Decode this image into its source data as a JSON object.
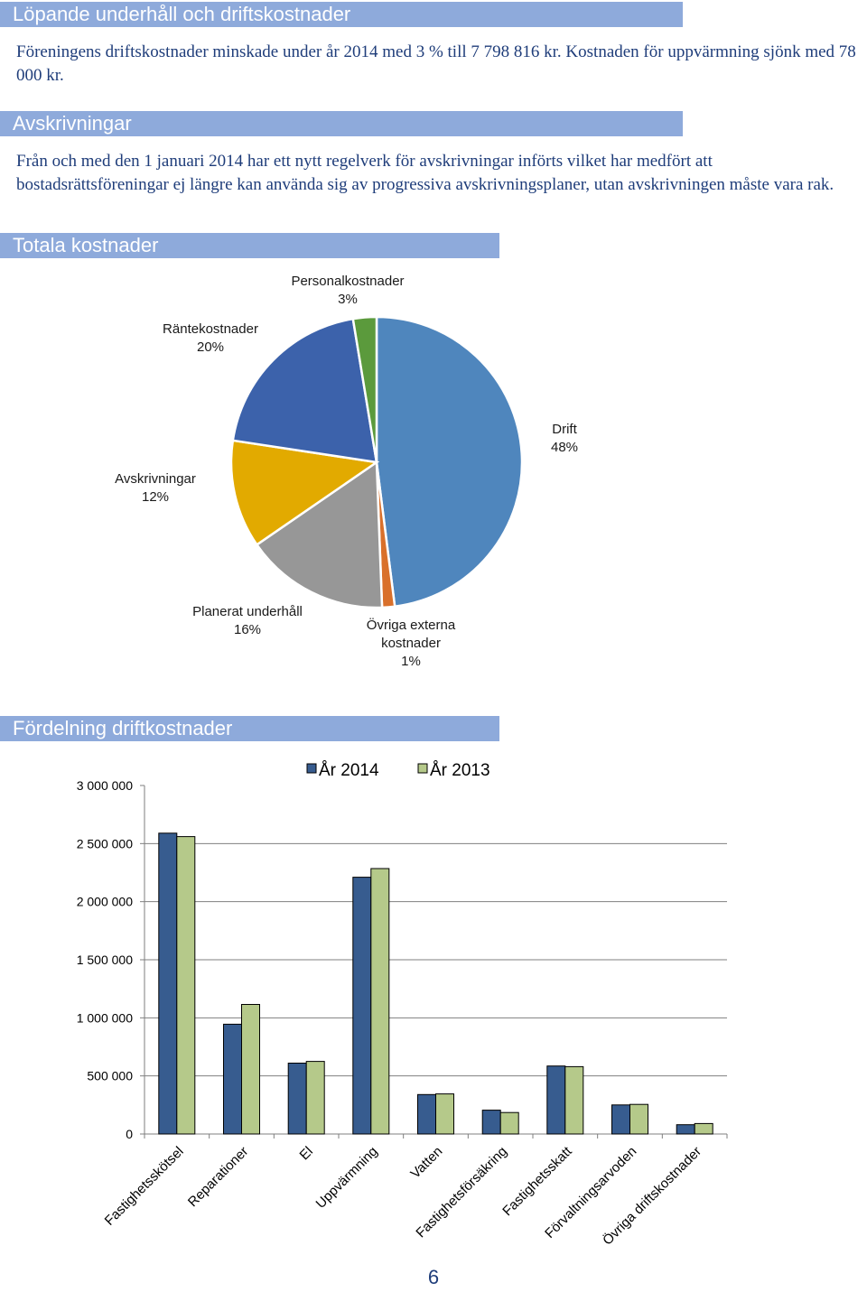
{
  "sections": {
    "underhall": {
      "heading": "Löpande underhåll och driftskostnader",
      "text": "Föreningens driftskostnader minskade under år 2014 med 3 % till 7 798 816 kr. Kostnaden för uppvärmning sjönk med 78 000 kr."
    },
    "avskrivningar": {
      "heading": "Avskrivningar",
      "text": "Från och med den 1 januari 2014 har ett nytt regelverk för avskrivningar införts vilket har medfört att bostadsrättsföreningar ej längre kan använda sig av progressiva avskrivningsplaner, utan avskrivningen måste vara rak."
    },
    "totala": {
      "heading": "Totala kostnader"
    },
    "fordelning": {
      "heading": "Fördelning driftkostnader"
    }
  },
  "chart_data": [
    {
      "type": "pie",
      "slices": [
        {
          "label": "Drift",
          "pct_label": "48%",
          "value": 48,
          "color": "#4f86bd"
        },
        {
          "label": "Övriga externa kostnader",
          "pct_label": "1%",
          "value": 1.4,
          "color": "#d9702b"
        },
        {
          "label": "Planerat underhåll",
          "pct_label": "16%",
          "value": 16,
          "color": "#979797"
        },
        {
          "label": "Avskrivningar",
          "pct_label": "12%",
          "value": 12,
          "color": "#e2aa00"
        },
        {
          "label": "Räntekostnader",
          "pct_label": "20%",
          "value": 20,
          "color": "#3c62ab"
        },
        {
          "label": "Personalkostnader",
          "pct_label": "3%",
          "value": 2.6,
          "color": "#5b9a3c"
        }
      ]
    },
    {
      "type": "bar",
      "categories": [
        "Fastighetsskötsel",
        "Reparationer",
        "El",
        "Uppvärmning",
        "Vatten",
        "Fastighetsförsäkring",
        "Fastighetsskatt",
        "Förvaltningsarvoden",
        "Övriga driftskostnader"
      ],
      "series": [
        {
          "name": "År 2014",
          "color": "#375c8f",
          "values": [
            2590000,
            945000,
            610000,
            2210000,
            340000,
            205000,
            585000,
            250000,
            80000
          ]
        },
        {
          "name": "År 2013",
          "color": "#b5c98a",
          "values": [
            2560000,
            1115000,
            625000,
            2285000,
            345000,
            185000,
            580000,
            255000,
            90000
          ]
        }
      ],
      "ylim": [
        0,
        3000000
      ],
      "y_ticks": [
        0,
        500000,
        1000000,
        1500000,
        2000000,
        2500000,
        3000000
      ],
      "y_tick_labels": [
        "0",
        "500 000",
        "1 000 000",
        "1 500 000",
        "2 000 000",
        "2 500 000",
        "3 000 000"
      ],
      "legend": "top",
      "grid": true
    }
  ],
  "page_number": "6"
}
